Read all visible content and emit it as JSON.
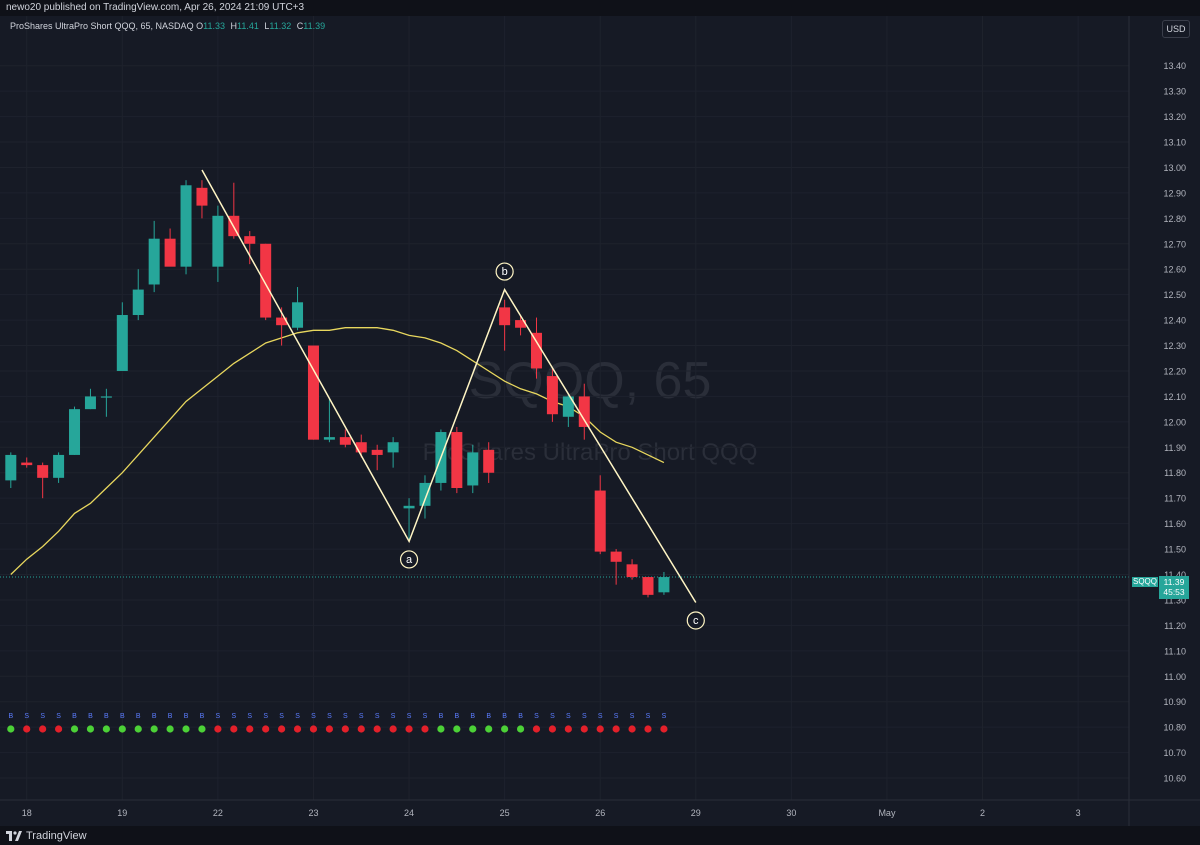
{
  "header": {
    "publisher_line": "newo20 published on TradingView.com, Apr 26, 2024 21:09 UTC+3"
  },
  "legend": {
    "title": "ProShares UltraPro Short QQQ, 65, NASDAQ",
    "o_label": "O",
    "o_value": "11.33",
    "h_label": "H",
    "h_value": "11.41",
    "l_label": "L",
    "l_value": "11.32",
    "c_label": "C",
    "c_value": "11.39"
  },
  "currency_button": "USD",
  "price_tag": {
    "symbol": "SQQQ",
    "price": "11.39",
    "countdown": "45:53"
  },
  "watermark": {
    "line1": "SQQQ, 65",
    "line2": "ProShares UltraPro Short QQQ"
  },
  "footer": {
    "brand": "TradingView"
  },
  "colors": {
    "background": "#161a25",
    "bull": "#26a69a",
    "bear": "#f23645",
    "ma_line": "#e8d75e",
    "wave_line": "#fff5c4",
    "signal_green": "#4cd137",
    "signal_red": "#e3202a",
    "signal_text": "#5b7cff"
  },
  "chart_data": {
    "type": "candlestick",
    "symbol": "SQQQ",
    "interval": "65",
    "ylim": [
      10.54,
      13.56
    ],
    "y_ticks": [
      "13.40",
      "13.30",
      "13.20",
      "13.10",
      "13.00",
      "12.90",
      "12.80",
      "12.70",
      "12.60",
      "12.50",
      "12.40",
      "12.30",
      "12.20",
      "12.10",
      "12.00",
      "11.90",
      "11.80",
      "11.70",
      "11.60",
      "11.50",
      "11.40",
      "11.30",
      "11.20",
      "11.10",
      "11.00",
      "10.90",
      "10.80",
      "10.70",
      "10.60"
    ],
    "x_ticks": [
      {
        "i": 1,
        "label": "18"
      },
      {
        "i": 7,
        "label": "19"
      },
      {
        "i": 13,
        "label": "22"
      },
      {
        "i": 19,
        "label": "23"
      },
      {
        "i": 25,
        "label": "24"
      },
      {
        "i": 31,
        "label": "25"
      },
      {
        "i": 37,
        "label": "26"
      },
      {
        "i": 43,
        "label": "29"
      },
      {
        "i": 49,
        "label": "30"
      },
      {
        "i": 55,
        "label": "May"
      },
      {
        "i": 61,
        "label": "2"
      },
      {
        "i": 67,
        "label": "3"
      }
    ],
    "candles": [
      {
        "o": 11.77,
        "h": 11.88,
        "l": 11.74,
        "c": 11.87
      },
      {
        "o": 11.84,
        "h": 11.86,
        "l": 11.82,
        "c": 11.83
      },
      {
        "o": 11.83,
        "h": 11.84,
        "l": 11.7,
        "c": 11.78
      },
      {
        "o": 11.78,
        "h": 11.88,
        "l": 11.76,
        "c": 11.87
      },
      {
        "o": 11.87,
        "h": 12.06,
        "l": 11.87,
        "c": 12.05
      },
      {
        "o": 12.05,
        "h": 12.13,
        "l": 12.05,
        "c": 12.1
      },
      {
        "o": 12.1,
        "h": 12.13,
        "l": 12.02,
        "c": 12.1
      },
      {
        "o": 12.2,
        "h": 12.47,
        "l": 12.2,
        "c": 12.42
      },
      {
        "o": 12.42,
        "h": 12.6,
        "l": 12.4,
        "c": 12.52
      },
      {
        "o": 12.54,
        "h": 12.79,
        "l": 12.51,
        "c": 12.72
      },
      {
        "o": 12.72,
        "h": 12.76,
        "l": 12.62,
        "c": 12.61
      },
      {
        "o": 12.61,
        "h": 12.95,
        "l": 12.58,
        "c": 12.93
      },
      {
        "o": 12.92,
        "h": 12.95,
        "l": 12.8,
        "c": 12.85
      },
      {
        "o": 12.61,
        "h": 12.85,
        "l": 12.55,
        "c": 12.81
      },
      {
        "o": 12.81,
        "h": 12.94,
        "l": 12.72,
        "c": 12.73
      },
      {
        "o": 12.73,
        "h": 12.75,
        "l": 12.62,
        "c": 12.7
      },
      {
        "o": 12.7,
        "h": 12.7,
        "l": 12.4,
        "c": 12.41
      },
      {
        "o": 12.41,
        "h": 12.45,
        "l": 12.3,
        "c": 12.38
      },
      {
        "o": 12.37,
        "h": 12.53,
        "l": 12.36,
        "c": 12.47
      },
      {
        "o": 12.3,
        "h": 12.3,
        "l": 11.93,
        "c": 11.93
      },
      {
        "o": 11.93,
        "h": 12.09,
        "l": 11.92,
        "c": 11.94
      },
      {
        "o": 11.94,
        "h": 11.97,
        "l": 11.9,
        "c": 11.91
      },
      {
        "o": 11.92,
        "h": 11.95,
        "l": 11.86,
        "c": 11.88
      },
      {
        "o": 11.89,
        "h": 11.91,
        "l": 11.81,
        "c": 11.87
      },
      {
        "o": 11.88,
        "h": 11.94,
        "l": 11.82,
        "c": 11.92
      },
      {
        "o": 11.66,
        "h": 11.7,
        "l": 11.54,
        "c": 11.67
      },
      {
        "o": 11.67,
        "h": 11.79,
        "l": 11.62,
        "c": 11.76
      },
      {
        "o": 11.76,
        "h": 11.97,
        "l": 11.73,
        "c": 11.96
      },
      {
        "o": 11.96,
        "h": 11.98,
        "l": 11.72,
        "c": 11.74
      },
      {
        "o": 11.75,
        "h": 11.91,
        "l": 11.72,
        "c": 11.88
      },
      {
        "o": 11.89,
        "h": 11.92,
        "l": 11.76,
        "c": 11.8
      },
      {
        "o": 12.45,
        "h": 12.48,
        "l": 12.28,
        "c": 12.38
      },
      {
        "o": 12.4,
        "h": 12.42,
        "l": 12.34,
        "c": 12.37
      },
      {
        "o": 12.35,
        "h": 12.41,
        "l": 12.17,
        "c": 12.21
      },
      {
        "o": 12.18,
        "h": 12.21,
        "l": 12.0,
        "c": 12.03
      },
      {
        "o": 12.02,
        "h": 12.11,
        "l": 11.98,
        "c": 12.1
      },
      {
        "o": 12.1,
        "h": 12.15,
        "l": 11.93,
        "c": 11.98
      },
      {
        "o": 11.73,
        "h": 11.79,
        "l": 11.48,
        "c": 11.49
      },
      {
        "o": 11.49,
        "h": 11.5,
        "l": 11.36,
        "c": 11.45
      },
      {
        "o": 11.44,
        "h": 11.46,
        "l": 11.38,
        "c": 11.39
      },
      {
        "o": 11.39,
        "h": 11.39,
        "l": 11.31,
        "c": 11.32
      },
      {
        "o": 11.33,
        "h": 11.41,
        "l": 11.32,
        "c": 11.39
      }
    ],
    "moving_average": [
      11.4,
      11.46,
      11.51,
      11.57,
      11.64,
      11.68,
      11.74,
      11.8,
      11.87,
      11.94,
      12.01,
      12.08,
      12.13,
      12.18,
      12.23,
      12.27,
      12.31,
      12.33,
      12.35,
      12.36,
      12.36,
      12.37,
      12.37,
      12.37,
      12.36,
      12.34,
      12.33,
      12.31,
      12.28,
      12.24,
      12.2,
      12.16,
      12.13,
      12.11,
      12.08,
      12.06,
      12.02,
      11.96,
      11.92,
      11.9,
      11.87,
      11.84
    ],
    "elliott_wave": [
      {
        "i": 12.0,
        "price": 12.99,
        "label": ""
      },
      {
        "i": 25.0,
        "price": 11.53,
        "label": "a"
      },
      {
        "i": 31.0,
        "price": 12.52,
        "label": "b"
      },
      {
        "i": 43.0,
        "price": 11.29,
        "label": "c"
      }
    ],
    "signals": [
      {
        "t": "B",
        "c": "green"
      },
      {
        "t": "S",
        "c": "red"
      },
      {
        "t": "S",
        "c": "red"
      },
      {
        "t": "S",
        "c": "red"
      },
      {
        "t": "B",
        "c": "green"
      },
      {
        "t": "B",
        "c": "green"
      },
      {
        "t": "B",
        "c": "green"
      },
      {
        "t": "B",
        "c": "green"
      },
      {
        "t": "B",
        "c": "green"
      },
      {
        "t": "B",
        "c": "green"
      },
      {
        "t": "B",
        "c": "green"
      },
      {
        "t": "B",
        "c": "green"
      },
      {
        "t": "B",
        "c": "green"
      },
      {
        "t": "S",
        "c": "red"
      },
      {
        "t": "S",
        "c": "red"
      },
      {
        "t": "S",
        "c": "red"
      },
      {
        "t": "S",
        "c": "red"
      },
      {
        "t": "S",
        "c": "red"
      },
      {
        "t": "S",
        "c": "red"
      },
      {
        "t": "S",
        "c": "red"
      },
      {
        "t": "S",
        "c": "red"
      },
      {
        "t": "S",
        "c": "red"
      },
      {
        "t": "S",
        "c": "red"
      },
      {
        "t": "S",
        "c": "red"
      },
      {
        "t": "S",
        "c": "red"
      },
      {
        "t": "S",
        "c": "red"
      },
      {
        "t": "S",
        "c": "red"
      },
      {
        "t": "B",
        "c": "green"
      },
      {
        "t": "B",
        "c": "green"
      },
      {
        "t": "B",
        "c": "green"
      },
      {
        "t": "B",
        "c": "green"
      },
      {
        "t": "B",
        "c": "green"
      },
      {
        "t": "B",
        "c": "green"
      },
      {
        "t": "S",
        "c": "red"
      },
      {
        "t": "S",
        "c": "red"
      },
      {
        "t": "S",
        "c": "red"
      },
      {
        "t": "S",
        "c": "red"
      },
      {
        "t": "S",
        "c": "red"
      },
      {
        "t": "S",
        "c": "red"
      },
      {
        "t": "S",
        "c": "red"
      },
      {
        "t": "S",
        "c": "red"
      },
      {
        "t": "S",
        "c": "red"
      }
    ]
  }
}
